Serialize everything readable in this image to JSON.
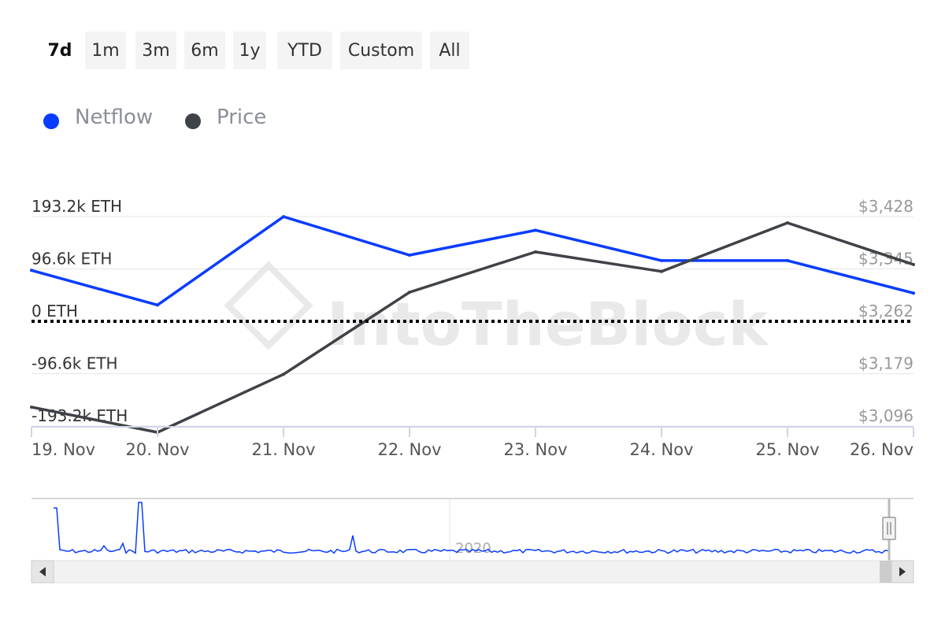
{
  "range_selector": {
    "buttons": [
      "7d",
      "1m",
      "3m",
      "6m",
      "1y",
      "YTD",
      "Custom",
      "All"
    ],
    "active": "7d"
  },
  "legend": {
    "items": [
      {
        "label": "Netflow",
        "color": "#0a3cff"
      },
      {
        "label": "Price",
        "color": "#3f4247"
      }
    ]
  },
  "watermark": "IntoTheBlock",
  "colors": {
    "netflow": "#0a3cff",
    "price": "#3f4247",
    "zero_line": "#000000",
    "grid": "#e6e6e6"
  },
  "chart_data": {
    "type": "line",
    "x": [
      "19. Nov",
      "20. Nov",
      "21. Nov",
      "22. Nov",
      "23. Nov",
      "24. Nov",
      "25. Nov",
      "26. Nov"
    ],
    "x_tick_labels": [
      "19. Nov",
      "20. Nov",
      "21. Nov",
      "22. Nov",
      "23. Nov",
      "24. Nov",
      "25. Nov",
      "26. Nov"
    ],
    "series": [
      {
        "name": "Netflow",
        "axis": "left",
        "values": [
          94000,
          30000,
          193000,
          122000,
          168000,
          112000,
          112000,
          52000
        ]
      },
      {
        "name": "Price",
        "axis": "right",
        "values": [
          3126,
          3086,
          3178,
          3308,
          3372,
          3341,
          3418,
          3352
        ]
      }
    ],
    "y_left": {
      "ticks": [
        193200,
        96600,
        0,
        -96600,
        -193200
      ],
      "tick_labels": [
        "193.2k ETH",
        "96.6k ETH",
        "0 ETH",
        "-96.6k ETH",
        "-193.2k ETH"
      ],
      "range": [
        -193200,
        193200
      ]
    },
    "y_right": {
      "ticks": [
        3428,
        3345,
        3262,
        3179,
        3096
      ],
      "tick_labels": [
        "$3,428",
        "$3,345",
        "$3,262",
        "$3,179",
        "$3,096"
      ],
      "range": [
        3096,
        3428
      ]
    },
    "zero_line": {
      "value": 0,
      "style": "dotted"
    },
    "grid": true,
    "legend_position": "top-left",
    "navigator": {
      "label": "2020"
    }
  }
}
